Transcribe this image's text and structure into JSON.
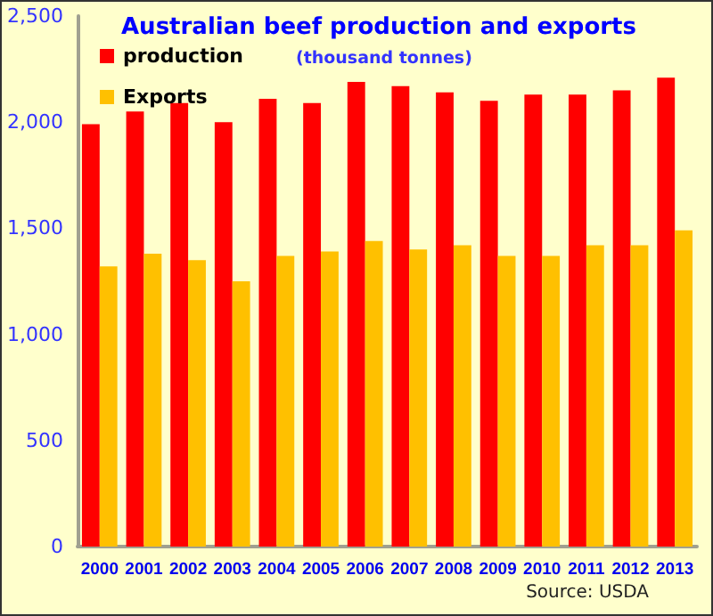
{
  "chart_data": {
    "type": "bar",
    "title": "Australian beef production and exports",
    "subtitle": "(thousand tonnes)",
    "categories": [
      "2000",
      "2001",
      "2002",
      "2003",
      "2004",
      "2005",
      "2006",
      "2007",
      "2008",
      "2009",
      "2010",
      "2011",
      "2012",
      "2013"
    ],
    "series": [
      {
        "name": "production",
        "color": "#ff0000",
        "values": [
          1990,
          2050,
          2090,
          2000,
          2110,
          2090,
          2190,
          2170,
          2140,
          2100,
          2130,
          2130,
          2150,
          2210
        ]
      },
      {
        "name": "Exports",
        "color": "#ffc000",
        "values": [
          1320,
          1380,
          1350,
          1250,
          1370,
          1390,
          1440,
          1400,
          1420,
          1370,
          1370,
          1420,
          1420,
          1490
        ]
      }
    ],
    "ylim": [
      0,
      2500
    ],
    "yticks": [
      {
        "value": 0,
        "label": "0"
      },
      {
        "value": 500,
        "label": "500"
      },
      {
        "value": 1000,
        "label": "1,000"
      },
      {
        "value": 1500,
        "label": "1,500"
      },
      {
        "value": 2000,
        "label": "2,000"
      },
      {
        "value": 2500,
        "label": "2,500"
      }
    ],
    "grid": false,
    "legend": "top left",
    "annotations": [
      "Source: USDA"
    ]
  }
}
